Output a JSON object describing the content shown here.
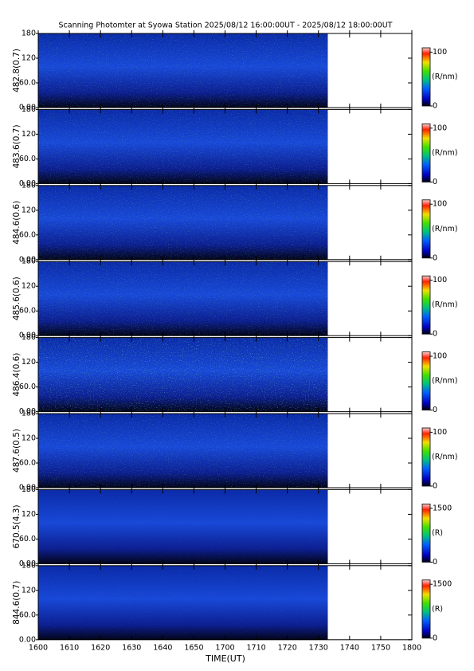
{
  "chart_data": {
    "type": "heatmap",
    "title": "Scanning Photomter at Syowa Station 2025/08/12 16:00:00UT - 2025/08/12 18:00:00UT",
    "xlabel": "TIME(UT)",
    "xlim": [
      0,
      120
    ],
    "data_xlim": [
      0,
      93
    ],
    "xticks": [
      {
        "value": 0,
        "label": "1600"
      },
      {
        "value": 10,
        "label": "1610"
      },
      {
        "value": 20,
        "label": "1620"
      },
      {
        "value": 30,
        "label": "1630"
      },
      {
        "value": 40,
        "label": "1640"
      },
      {
        "value": 50,
        "label": "1650"
      },
      {
        "value": 60,
        "label": "1700"
      },
      {
        "value": 70,
        "label": "1710"
      },
      {
        "value": 80,
        "label": "1720"
      },
      {
        "value": 90,
        "label": "1730"
      },
      {
        "value": 100,
        "label": "1740"
      },
      {
        "value": 110,
        "label": "1750"
      },
      {
        "value": 120,
        "label": "1800"
      }
    ],
    "ylim": [
      0,
      180
    ],
    "yticks": [
      {
        "value": 0,
        "label": "0.00"
      },
      {
        "value": 60,
        "label": "60.0"
      },
      120,
      180
    ],
    "panels": [
      {
        "label": "482.8(0.7)",
        "cbar_lim": [
          0,
          108
        ],
        "cbar_ticks": [
          0,
          100
        ],
        "cbar_label": "(R/nm)"
      },
      {
        "label": "483.6(0.7)",
        "cbar_lim": [
          0,
          108
        ],
        "cbar_ticks": [
          0,
          100
        ],
        "cbar_label": "(R/nm)"
      },
      {
        "label": "484.6(0.6)",
        "cbar_lim": [
          0,
          108
        ],
        "cbar_ticks": [
          0,
          100
        ],
        "cbar_label": "(R/nm)"
      },
      {
        "label": "485.6(0.6)",
        "cbar_lim": [
          0,
          108
        ],
        "cbar_ticks": [
          0,
          100
        ],
        "cbar_label": "(R/nm)"
      },
      {
        "label": "486.4(0.6)",
        "cbar_lim": [
          0,
          108
        ],
        "cbar_ticks": [
          0,
          100
        ],
        "cbar_label": "(R/nm)"
      },
      {
        "label": "487.6(0.5)",
        "cbar_lim": [
          0,
          108
        ],
        "cbar_ticks": [
          0,
          100
        ],
        "cbar_label": "(R/nm)"
      },
      {
        "label": "670.5(4.3)",
        "cbar_lim": [
          0,
          1620
        ],
        "cbar_ticks": [
          0,
          1500
        ],
        "cbar_label": "(R)"
      },
      {
        "label": "844.6(0.7)",
        "cbar_lim": [
          0,
          1620
        ],
        "cbar_ticks": [
          0,
          1500
        ],
        "cbar_label": "(R)"
      }
    ]
  }
}
